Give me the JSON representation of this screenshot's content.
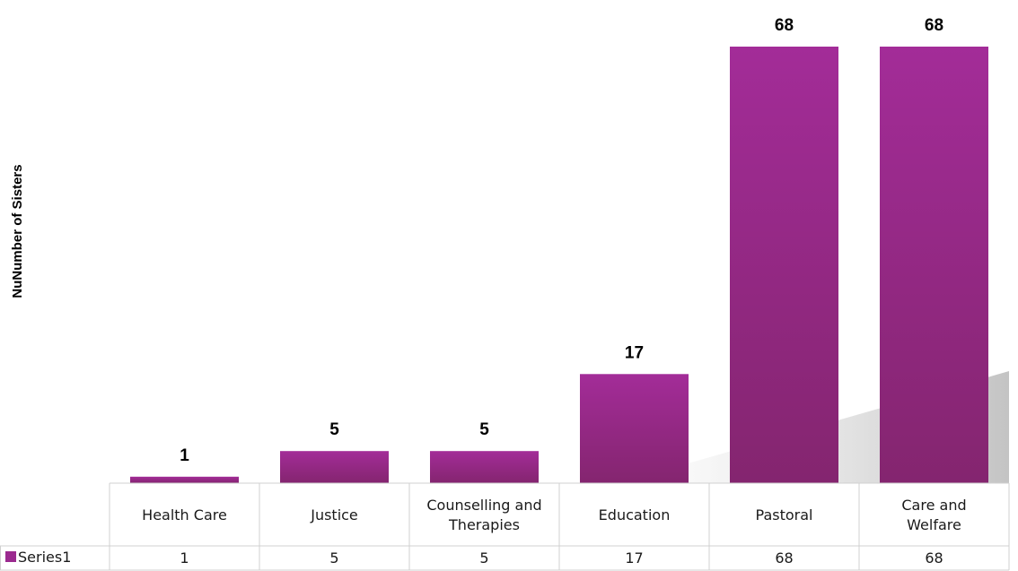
{
  "chart_data": {
    "type": "bar",
    "title": "",
    "xlabel": "",
    "ylabel": "NuNumber of Sisters",
    "categories": [
      [
        "Health Care"
      ],
      [
        "Justice"
      ],
      [
        "Counselling and",
        "Therapies"
      ],
      [
        "Education"
      ],
      [
        "Pastoral"
      ],
      [
        "Care and",
        "Welfare"
      ]
    ],
    "series": [
      {
        "name": "Series1",
        "values": [
          1,
          5,
          5,
          17,
          68,
          68
        ],
        "color": "#9b2a8f"
      }
    ],
    "ylim": [
      0,
      70
    ],
    "grid": false,
    "legend": "data-table",
    "data_table": true
  }
}
